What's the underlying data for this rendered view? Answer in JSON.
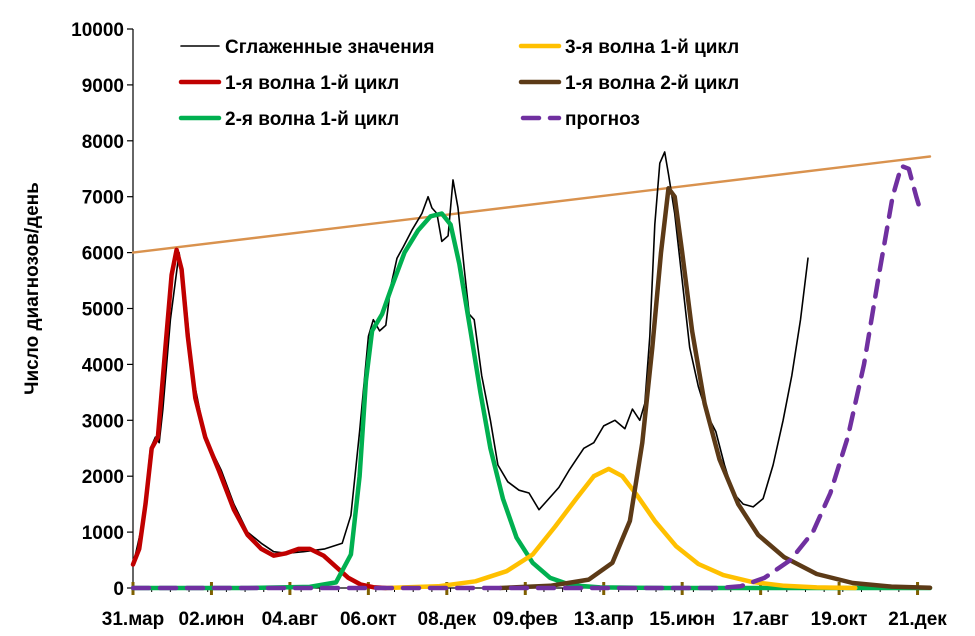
{
  "chart_data": {
    "type": "line",
    "title": "",
    "xlabel": "",
    "ylabel": "Число диагнозов/день",
    "ylim": [
      0,
      10000
    ],
    "yticks": [
      0,
      1000,
      2000,
      3000,
      4000,
      5000,
      6000,
      7000,
      8000,
      9000,
      10000
    ],
    "xlim": [
      "2020-03-31",
      "2021-12-31"
    ],
    "x_tick_labels": [
      "31.мар",
      "02.июн",
      "04.авг",
      "06.окт",
      "08.дек",
      "09.фев",
      "13.апр",
      "15.июн",
      "17.авг",
      "19.окт",
      "21.дек"
    ],
    "x_tick_dates": [
      "2020-03-31",
      "2020-06-02",
      "2020-08-04",
      "2020-10-06",
      "2020-12-08",
      "2021-02-09",
      "2021-04-13",
      "2021-06-15",
      "2021-08-17",
      "2021-10-19",
      "2021-12-21"
    ],
    "grid": false,
    "legend_position": "top",
    "series": [
      {
        "name": "Сглаженные значения",
        "color": "#000000",
        "style": "thin",
        "points": [
          [
            "2020-03-31",
            400
          ],
          [
            "2020-04-08",
            1200
          ],
          [
            "2020-04-14",
            2500
          ],
          [
            "2020-04-18",
            2700
          ],
          [
            "2020-04-21",
            2600
          ],
          [
            "2020-04-24",
            3200
          ],
          [
            "2020-04-30",
            4800
          ],
          [
            "2020-05-07",
            6000
          ],
          [
            "2020-05-12",
            5200
          ],
          [
            "2020-05-18",
            3800
          ],
          [
            "2020-05-28",
            2700
          ],
          [
            "2020-06-10",
            2100
          ],
          [
            "2020-06-20",
            1500
          ],
          [
            "2020-07-01",
            1000
          ],
          [
            "2020-07-12",
            800
          ],
          [
            "2020-07-22",
            650
          ],
          [
            "2020-08-01",
            620
          ],
          [
            "2020-08-15",
            650
          ],
          [
            "2020-09-01",
            700
          ],
          [
            "2020-09-15",
            800
          ],
          [
            "2020-09-22",
            1300
          ],
          [
            "2020-09-29",
            2800
          ],
          [
            "2020-10-06",
            4500
          ],
          [
            "2020-10-10",
            4800
          ],
          [
            "2020-10-15",
            4600
          ],
          [
            "2020-10-20",
            4700
          ],
          [
            "2020-10-24",
            5400
          ],
          [
            "2020-10-29",
            5900
          ],
          [
            "2020-11-03",
            6100
          ],
          [
            "2020-11-10",
            6400
          ],
          [
            "2020-11-18",
            6700
          ],
          [
            "2020-11-23",
            7000
          ],
          [
            "2020-11-26",
            6800
          ],
          [
            "2020-11-30",
            6700
          ],
          [
            "2020-12-04",
            6200
          ],
          [
            "2020-12-09",
            6300
          ],
          [
            "2020-12-13",
            7300
          ],
          [
            "2020-12-17",
            6800
          ],
          [
            "2020-12-22",
            5700
          ],
          [
            "2020-12-26",
            4900
          ],
          [
            "2020-12-30",
            4800
          ],
          [
            "2021-01-05",
            3800
          ],
          [
            "2021-01-12",
            3000
          ],
          [
            "2021-01-18",
            2200
          ],
          [
            "2021-01-26",
            1900
          ],
          [
            "2021-02-04",
            1750
          ],
          [
            "2021-02-12",
            1700
          ],
          [
            "2021-02-20",
            1400
          ],
          [
            "2021-02-28",
            1600
          ],
          [
            "2021-03-08",
            1800
          ],
          [
            "2021-03-16",
            2100
          ],
          [
            "2021-03-22",
            2300
          ],
          [
            "2021-03-28",
            2500
          ],
          [
            "2021-04-05",
            2600
          ],
          [
            "2021-04-13",
            2900
          ],
          [
            "2021-04-22",
            3000
          ],
          [
            "2021-04-30",
            2850
          ],
          [
            "2021-05-06",
            3200
          ],
          [
            "2021-05-12",
            3000
          ],
          [
            "2021-05-16",
            3300
          ],
          [
            "2021-05-20",
            4500
          ],
          [
            "2021-05-24",
            6500
          ],
          [
            "2021-05-28",
            7600
          ],
          [
            "2021-06-01",
            7800
          ],
          [
            "2021-06-04",
            7400
          ],
          [
            "2021-06-09",
            6700
          ],
          [
            "2021-06-15",
            5500
          ],
          [
            "2021-06-21",
            4300
          ],
          [
            "2021-06-28",
            3600
          ],
          [
            "2021-07-05",
            3100
          ],
          [
            "2021-07-12",
            2800
          ],
          [
            "2021-07-19",
            2200
          ],
          [
            "2021-07-26",
            1700
          ],
          [
            "2021-08-03",
            1500
          ],
          [
            "2021-08-11",
            1450
          ],
          [
            "2021-08-19",
            1600
          ],
          [
            "2021-08-27",
            2200
          ],
          [
            "2021-09-04",
            3000
          ],
          [
            "2021-09-11",
            3800
          ],
          [
            "2021-09-18",
            4800
          ],
          [
            "2021-09-24",
            5900
          ]
        ]
      },
      {
        "name": "1-я волна 1-й цикл",
        "color": "#C00000",
        "style": "thick",
        "points": [
          [
            "2020-03-31",
            420
          ],
          [
            "2020-04-05",
            700
          ],
          [
            "2020-04-10",
            1500
          ],
          [
            "2020-04-15",
            2500
          ],
          [
            "2020-04-20",
            2700
          ],
          [
            "2020-04-26",
            4300
          ],
          [
            "2020-05-01",
            5600
          ],
          [
            "2020-05-05",
            6050
          ],
          [
            "2020-05-09",
            5700
          ],
          [
            "2020-05-14",
            4500
          ],
          [
            "2020-05-20",
            3400
          ],
          [
            "2020-05-28",
            2700
          ],
          [
            "2020-06-08",
            2100
          ],
          [
            "2020-06-20",
            1400
          ],
          [
            "2020-07-01",
            950
          ],
          [
            "2020-07-12",
            700
          ],
          [
            "2020-07-22",
            580
          ],
          [
            "2020-08-01",
            620
          ],
          [
            "2020-08-11",
            700
          ],
          [
            "2020-08-20",
            700
          ],
          [
            "2020-08-31",
            580
          ],
          [
            "2020-09-10",
            380
          ],
          [
            "2020-09-20",
            180
          ],
          [
            "2020-09-30",
            60
          ],
          [
            "2020-10-10",
            15
          ],
          [
            "2020-10-20",
            0
          ]
        ]
      },
      {
        "name": "2-я волна 1-й цикл",
        "color": "#00B050",
        "style": "thick",
        "points": [
          [
            "2020-03-31",
            0
          ],
          [
            "2020-07-01",
            0
          ],
          [
            "2020-08-20",
            20
          ],
          [
            "2020-09-10",
            100
          ],
          [
            "2020-09-22",
            600
          ],
          [
            "2020-09-29",
            2000
          ],
          [
            "2020-10-04",
            3700
          ],
          [
            "2020-10-09",
            4600
          ],
          [
            "2020-10-17",
            4900
          ],
          [
            "2020-10-25",
            5400
          ],
          [
            "2020-11-04",
            6000
          ],
          [
            "2020-11-15",
            6400
          ],
          [
            "2020-11-25",
            6650
          ],
          [
            "2020-12-04",
            6700
          ],
          [
            "2020-12-11",
            6500
          ],
          [
            "2020-12-18",
            5800
          ],
          [
            "2020-12-27",
            4600
          ],
          [
            "2021-01-04",
            3500
          ],
          [
            "2021-01-12",
            2500
          ],
          [
            "2021-01-22",
            1600
          ],
          [
            "2021-02-02",
            900
          ],
          [
            "2021-02-15",
            450
          ],
          [
            "2021-03-01",
            180
          ],
          [
            "2021-03-18",
            50
          ],
          [
            "2021-04-10",
            10
          ],
          [
            "2021-06-01",
            0
          ],
          [
            "2021-12-31",
            0
          ]
        ]
      },
      {
        "name": "3-я волна 1-й цикл",
        "color": "#FFC000",
        "style": "thick",
        "points": [
          [
            "2020-10-20",
            0
          ],
          [
            "2020-12-01",
            30
          ],
          [
            "2020-12-31",
            120
          ],
          [
            "2021-01-25",
            300
          ],
          [
            "2021-02-15",
            600
          ],
          [
            "2021-03-05",
            1100
          ],
          [
            "2021-03-22",
            1600
          ],
          [
            "2021-04-05",
            2000
          ],
          [
            "2021-04-17",
            2130
          ],
          [
            "2021-04-28",
            2000
          ],
          [
            "2021-05-10",
            1650
          ],
          [
            "2021-05-24",
            1200
          ],
          [
            "2021-06-10",
            750
          ],
          [
            "2021-06-28",
            430
          ],
          [
            "2021-07-18",
            230
          ],
          [
            "2021-08-10",
            110
          ],
          [
            "2021-09-05",
            40
          ],
          [
            "2021-10-01",
            10
          ],
          [
            "2021-11-01",
            0
          ]
        ]
      },
      {
        "name": "1-я волна 2-й цикл",
        "color": "#5C3A17",
        "style": "thick",
        "points": [
          [
            "2021-01-20",
            0
          ],
          [
            "2021-03-01",
            40
          ],
          [
            "2021-04-01",
            150
          ],
          [
            "2021-04-20",
            450
          ],
          [
            "2021-05-04",
            1200
          ],
          [
            "2021-05-14",
            2600
          ],
          [
            "2021-05-22",
            4300
          ],
          [
            "2021-05-29",
            6000
          ],
          [
            "2021-06-04",
            7150
          ],
          [
            "2021-06-09",
            7000
          ],
          [
            "2021-06-15",
            6000
          ],
          [
            "2021-06-23",
            4600
          ],
          [
            "2021-07-03",
            3300
          ],
          [
            "2021-07-15",
            2300
          ],
          [
            "2021-07-30",
            1500
          ],
          [
            "2021-08-15",
            950
          ],
          [
            "2021-09-05",
            550
          ],
          [
            "2021-10-01",
            250
          ],
          [
            "2021-10-30",
            90
          ],
          [
            "2021-11-30",
            25
          ],
          [
            "2021-12-31",
            5
          ]
        ]
      },
      {
        "name": "прогноз",
        "color": "#7030A0",
        "style": "dashed",
        "points": [
          [
            "2020-03-31",
            0
          ],
          [
            "2021-07-15",
            0
          ],
          [
            "2021-08-01",
            30
          ],
          [
            "2021-08-20",
            180
          ],
          [
            "2021-09-10",
            500
          ],
          [
            "2021-09-28",
            1000
          ],
          [
            "2021-10-12",
            1700
          ],
          [
            "2021-10-26",
            2700
          ],
          [
            "2021-11-08",
            4000
          ],
          [
            "2021-11-20",
            5600
          ],
          [
            "2021-12-01",
            7000
          ],
          [
            "2021-12-08",
            7550
          ],
          [
            "2021-12-14",
            7500
          ],
          [
            "2021-12-20",
            7000
          ],
          [
            "2021-12-24",
            6700
          ]
        ]
      },
      {
        "name": "",
        "color": "#D9924E",
        "style": "trend",
        "points": [
          [
            "2020-03-31",
            6000
          ],
          [
            "2021-12-31",
            7720
          ]
        ]
      }
    ],
    "legend": [
      {
        "label": "Сглаженные значения",
        "color": "#000000",
        "style": "thin"
      },
      {
        "label": "1-я волна 1-й цикл",
        "color": "#C00000",
        "style": "thick"
      },
      {
        "label": "2-я волна 1-й цикл",
        "color": "#00B050",
        "style": "thick"
      },
      {
        "label": "3-я волна 1-й цикл",
        "color": "#FFC000",
        "style": "thick"
      },
      {
        "label": "1-я волна 2-й цикл",
        "color": "#5C3A17",
        "style": "thick"
      },
      {
        "label": "прогноз",
        "color": "#7030A0",
        "style": "dashed"
      }
    ]
  }
}
